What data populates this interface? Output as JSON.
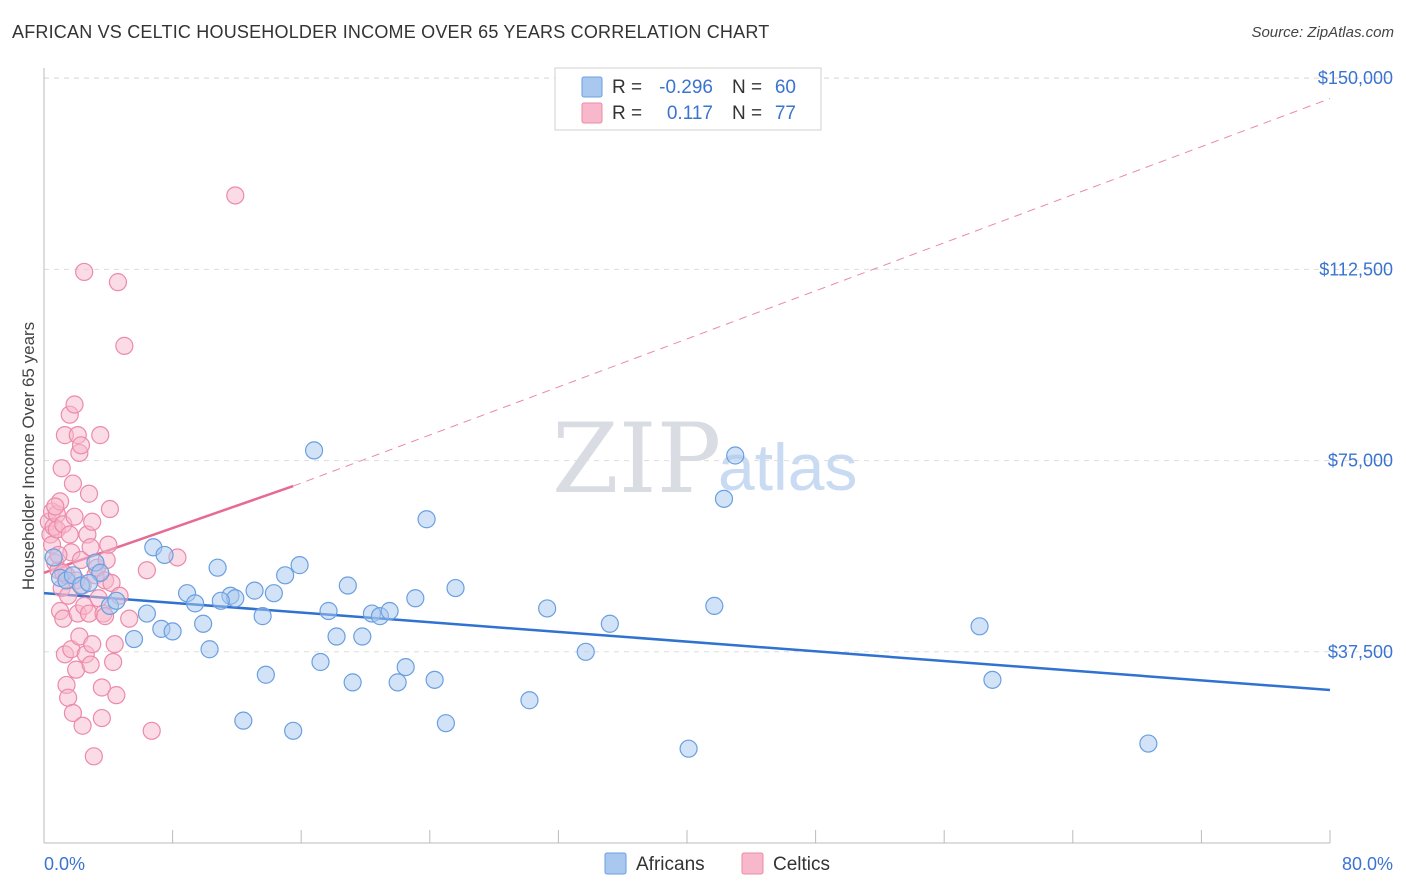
{
  "header": {
    "title": "AFRICAN VS CELTIC HOUSEHOLDER INCOME OVER 65 YEARS CORRELATION CHART",
    "source": "Source: ZipAtlas.com"
  },
  "watermark": {
    "zip": "ZIP",
    "atlas": "atlas"
  },
  "legend": {
    "rows": [
      {
        "r_label": "R =",
        "r_value": "-0.296",
        "n_label": "N =",
        "n_value": "60",
        "color": "#a8c8f0"
      },
      {
        "r_label": "R =",
        "r_value": "0.117",
        "n_label": "N =",
        "n_value": "77",
        "color": "#f7b8cb"
      }
    ]
  },
  "bottom_legend": [
    {
      "label": "Africans",
      "color": "#a8c8f0"
    },
    {
      "label": "Celtics",
      "color": "#f7b8cb"
    }
  ],
  "colors": {
    "africans_fill": "#a8c8f0",
    "africans_stroke": "#6a9fe0",
    "africans_line": "#2f72d0",
    "celtics_fill": "#f7b8cb",
    "celtics_stroke": "#ec8aaa",
    "celtics_line": "#e66a92",
    "grid": "#dddddd",
    "tick_text": "#3a74d0"
  },
  "chart_data": {
    "type": "scatter",
    "title": "AFRICAN VS CELTIC HOUSEHOLDER INCOME OVER 65 YEARS CORRELATION CHART",
    "xlabel": "",
    "ylabel": "Householder Income Over 65 years",
    "xlim": [
      0,
      80
    ],
    "ylim": [
      0,
      152000
    ],
    "x_tick_labels": [
      "0.0%",
      "80.0%"
    ],
    "y_ticks": [
      37500,
      75000,
      112500,
      150000
    ],
    "y_tick_labels": [
      "$37,500",
      "$75,000",
      "$112,500",
      "$150,000"
    ],
    "series": [
      {
        "name": "Africans",
        "r": -0.296,
        "n": 60,
        "points": [
          [
            0.6,
            56000
          ],
          [
            1.0,
            52000
          ],
          [
            1.4,
            51500
          ],
          [
            1.8,
            52500
          ],
          [
            2.3,
            50500
          ],
          [
            3.2,
            55000
          ],
          [
            3.5,
            53000
          ],
          [
            4.1,
            46500
          ],
          [
            4.5,
            47500
          ],
          [
            5.6,
            40000
          ],
          [
            6.4,
            45000
          ],
          [
            6.8,
            58000
          ],
          [
            7.3,
            42000
          ],
          [
            8.0,
            41500
          ],
          [
            8.9,
            49000
          ],
          [
            9.4,
            47000
          ],
          [
            9.9,
            43000
          ],
          [
            10.3,
            38000
          ],
          [
            10.8,
            54000
          ],
          [
            11.6,
            48500
          ],
          [
            11.9,
            48000
          ],
          [
            12.4,
            24000
          ],
          [
            13.1,
            49500
          ],
          [
            13.6,
            44500
          ],
          [
            13.8,
            33000
          ],
          [
            14.3,
            49000
          ],
          [
            15.0,
            52500
          ],
          [
            15.5,
            22000
          ],
          [
            15.9,
            54500
          ],
          [
            16.8,
            77000
          ],
          [
            17.2,
            35500
          ],
          [
            17.7,
            45500
          ],
          [
            18.2,
            40500
          ],
          [
            18.9,
            50500
          ],
          [
            19.2,
            31500
          ],
          [
            19.8,
            40500
          ],
          [
            20.4,
            45000
          ],
          [
            20.9,
            44500
          ],
          [
            21.5,
            45500
          ],
          [
            22.0,
            31500
          ],
          [
            22.5,
            34500
          ],
          [
            23.1,
            48000
          ],
          [
            23.8,
            63500
          ],
          [
            24.3,
            32000
          ],
          [
            25.0,
            23500
          ],
          [
            25.6,
            50000
          ],
          [
            30.2,
            28000
          ],
          [
            31.3,
            46000
          ],
          [
            33.7,
            37500
          ],
          [
            35.2,
            43000
          ],
          [
            40.1,
            18500
          ],
          [
            41.7,
            46500
          ],
          [
            42.3,
            67500
          ],
          [
            43.0,
            76000
          ],
          [
            58.2,
            42500
          ],
          [
            59.0,
            32000
          ],
          [
            68.7,
            19500
          ],
          [
            2.8,
            51000
          ],
          [
            7.5,
            56500
          ],
          [
            11.0,
            47500
          ]
        ]
      },
      {
        "name": "Celtics",
        "r": 0.117,
        "n": 77,
        "points": [
          [
            0.3,
            63000
          ],
          [
            0.4,
            60500
          ],
          [
            0.5,
            65000
          ],
          [
            0.5,
            58500
          ],
          [
            0.6,
            62000
          ],
          [
            0.7,
            55000
          ],
          [
            0.8,
            64500
          ],
          [
            0.8,
            61500
          ],
          [
            0.9,
            53500
          ],
          [
            1.0,
            67000
          ],
          [
            1.0,
            45500
          ],
          [
            1.1,
            73500
          ],
          [
            1.1,
            50000
          ],
          [
            1.2,
            62500
          ],
          [
            1.2,
            44000
          ],
          [
            1.3,
            80000
          ],
          [
            1.3,
            37000
          ],
          [
            1.4,
            52500
          ],
          [
            1.4,
            31000
          ],
          [
            1.5,
            48500
          ],
          [
            1.5,
            28500
          ],
          [
            1.6,
            84000
          ],
          [
            1.6,
            60500
          ],
          [
            1.7,
            57000
          ],
          [
            1.7,
            38000
          ],
          [
            1.8,
            70500
          ],
          [
            1.8,
            25500
          ],
          [
            1.9,
            86000
          ],
          [
            1.9,
            64000
          ],
          [
            2.0,
            51500
          ],
          [
            2.0,
            34000
          ],
          [
            2.1,
            80000
          ],
          [
            2.1,
            45000
          ],
          [
            2.2,
            76500
          ],
          [
            2.2,
            40500
          ],
          [
            2.3,
            78000
          ],
          [
            2.3,
            55500
          ],
          [
            2.4,
            23000
          ],
          [
            2.5,
            112000
          ],
          [
            2.5,
            46500
          ],
          [
            2.6,
            37000
          ],
          [
            2.7,
            60500
          ],
          [
            2.8,
            68500
          ],
          [
            2.8,
            45000
          ],
          [
            2.9,
            35000
          ],
          [
            3.0,
            63000
          ],
          [
            3.0,
            39000
          ],
          [
            3.1,
            17000
          ],
          [
            3.2,
            52500
          ],
          [
            3.3,
            54000
          ],
          [
            3.4,
            48000
          ],
          [
            3.5,
            80000
          ],
          [
            3.6,
            30500
          ],
          [
            3.6,
            24500
          ],
          [
            3.7,
            45000
          ],
          [
            3.8,
            51500
          ],
          [
            3.9,
            55500
          ],
          [
            4.0,
            58500
          ],
          [
            4.1,
            65500
          ],
          [
            4.2,
            51000
          ],
          [
            4.3,
            35500
          ],
          [
            4.4,
            39000
          ],
          [
            4.5,
            29000
          ],
          [
            4.6,
            110000
          ],
          [
            4.7,
            48500
          ],
          [
            5.0,
            97500
          ],
          [
            5.3,
            44000
          ],
          [
            6.4,
            53500
          ],
          [
            6.7,
            22000
          ],
          [
            8.3,
            56000
          ],
          [
            11.9,
            127000
          ],
          [
            0.9,
            56500
          ],
          [
            1.2,
            53000
          ],
          [
            2.9,
            58000
          ],
          [
            3.8,
            44500
          ],
          [
            2.4,
            50500
          ],
          [
            0.7,
            66000
          ]
        ]
      }
    ],
    "trend_lines": [
      {
        "series": "Africans",
        "x": [
          0,
          80
        ],
        "y": [
          49000,
          30000
        ],
        "style": "solid"
      },
      {
        "series": "Celtics",
        "x": [
          0,
          15.5
        ],
        "y": [
          53000,
          70000
        ],
        "style": "solid"
      },
      {
        "series": "Celtics",
        "x": [
          15.5,
          80
        ],
        "y": [
          70000,
          146000
        ],
        "style": "dashed"
      }
    ]
  }
}
